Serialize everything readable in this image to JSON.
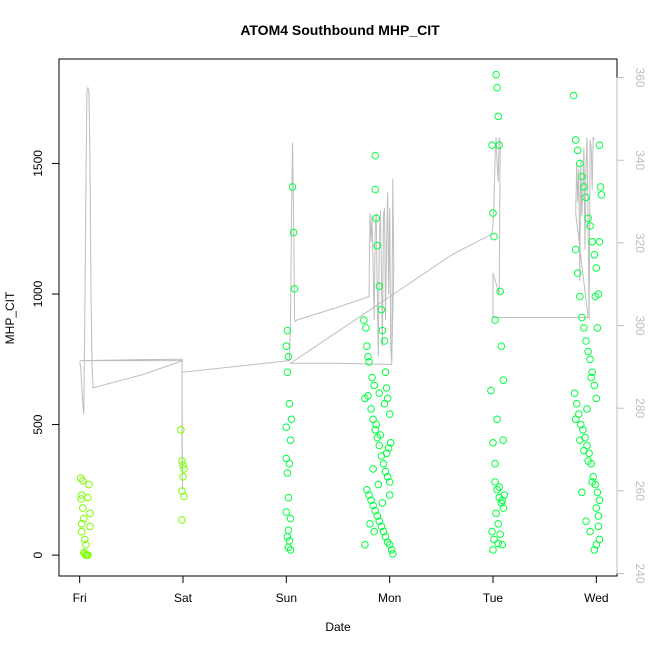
{
  "chart_data": {
    "type": "scatter",
    "title": "ATOM4 Southbound MHP_CIT",
    "xlabel": "Date",
    "ylabel": "MHP_CIT",
    "x_ticks": [
      {
        "label": "Fri",
        "day": 0
      },
      {
        "label": "Sat",
        "day": 1
      },
      {
        "label": "Sun",
        "day": 2
      },
      {
        "label": "Mon",
        "day": 3
      },
      {
        "label": "Tue",
        "day": 4
      },
      {
        "label": "Wed",
        "day": 5
      }
    ],
    "xlim": [
      -0.2,
      5.2
    ],
    "ylim": [
      -80,
      1900
    ],
    "y_ticks": [
      0,
      500,
      1000,
      1500
    ],
    "y2lim": [
      239.4,
      364.5
    ],
    "y2_ticks": [
      240,
      260,
      280,
      300,
      320,
      340,
      360
    ],
    "grid": false,
    "colors": {
      "points_early": "#7cff00",
      "points_late": "#00ff40",
      "line": "#bebebe"
    },
    "points": [
      [
        0.01,
        295
      ],
      [
        0.02,
        230
      ],
      [
        0.015,
        215
      ],
      [
        0.03,
        180
      ],
      [
        0.04,
        140
      ],
      [
        0.02,
        90
      ],
      [
        0.05,
        60
      ],
      [
        0.04,
        10
      ],
      [
        0.05,
        5
      ],
      [
        0.06,
        0
      ],
      [
        0.07,
        0
      ],
      [
        0.08,
        0
      ],
      [
        0.09,
        270
      ],
      [
        0.08,
        220
      ],
      [
        0.1,
        160
      ],
      [
        0.1,
        110
      ],
      [
        0.06,
        40
      ],
      [
        0.03,
        285
      ],
      [
        0.02,
        120
      ],
      [
        0.98,
        480
      ],
      [
        0.99,
        360
      ],
      [
        1.0,
        345
      ],
      [
        1.01,
        330
      ],
      [
        1.0,
        300
      ],
      [
        0.99,
        245
      ],
      [
        1.01,
        225
      ],
      [
        0.99,
        135
      ],
      [
        2.01,
        860
      ],
      [
        2.0,
        800
      ],
      [
        2.02,
        760
      ],
      [
        2.01,
        700
      ],
      [
        2.0,
        490
      ],
      [
        2.03,
        580
      ],
      [
        2.05,
        520
      ],
      [
        2.04,
        440
      ],
      [
        2.0,
        370
      ],
      [
        2.03,
        350
      ],
      [
        2.01,
        315
      ],
      [
        2.02,
        220
      ],
      [
        2.0,
        165
      ],
      [
        2.04,
        140
      ],
      [
        2.02,
        95
      ],
      [
        2.01,
        70
      ],
      [
        2.03,
        55
      ],
      [
        2.02,
        30
      ],
      [
        2.04,
        20
      ],
      [
        2.06,
        1410
      ],
      [
        2.07,
        1235
      ],
      [
        2.08,
        1020
      ],
      [
        2.75,
        900
      ],
      [
        2.77,
        870
      ],
      [
        2.78,
        800
      ],
      [
        2.79,
        760
      ],
      [
        2.8,
        740
      ],
      [
        2.76,
        600
      ],
      [
        2.82,
        560
      ],
      [
        2.84,
        520
      ],
      [
        2.86,
        480
      ],
      [
        2.88,
        450
      ],
      [
        2.9,
        420
      ],
      [
        2.92,
        380
      ],
      [
        2.94,
        350
      ],
      [
        2.96,
        320
      ],
      [
        2.98,
        300
      ],
      [
        3.0,
        280
      ],
      [
        2.78,
        250
      ],
      [
        2.8,
        230
      ],
      [
        2.82,
        210
      ],
      [
        2.84,
        190
      ],
      [
        2.86,
        170
      ],
      [
        2.88,
        150
      ],
      [
        2.9,
        130
      ],
      [
        2.92,
        110
      ],
      [
        2.94,
        90
      ],
      [
        2.96,
        70
      ],
      [
        2.98,
        50
      ],
      [
        3.0,
        40
      ],
      [
        3.02,
        20
      ],
      [
        3.03,
        5
      ],
      [
        2.86,
        1530
      ],
      [
        2.86,
        1400
      ],
      [
        2.87,
        1290
      ],
      [
        2.88,
        1185
      ],
      [
        2.9,
        1030
      ],
      [
        2.92,
        940
      ],
      [
        2.93,
        860
      ],
      [
        2.95,
        820
      ],
      [
        2.96,
        700
      ],
      [
        2.97,
        640
      ],
      [
        2.98,
        600
      ],
      [
        2.83,
        680
      ],
      [
        2.85,
        650
      ],
      [
        2.9,
        620
      ],
      [
        2.95,
        580
      ],
      [
        3.0,
        540
      ],
      [
        2.76,
        40
      ],
      [
        2.81,
        120
      ],
      [
        2.89,
        270
      ],
      [
        2.99,
        410
      ],
      [
        3.01,
        430
      ],
      [
        2.79,
        610
      ],
      [
        2.87,
        500
      ],
      [
        2.91,
        460
      ],
      [
        2.97,
        390
      ],
      [
        2.84,
        330
      ],
      [
        2.93,
        200
      ],
      [
        3.0,
        230
      ],
      [
        2.85,
        90
      ],
      [
        3.99,
        1570
      ],
      [
        4.0,
        1310
      ],
      [
        4.01,
        1220
      ],
      [
        4.02,
        900
      ],
      [
        4.03,
        1840
      ],
      [
        4.04,
        1790
      ],
      [
        4.05,
        1680
      ],
      [
        4.06,
        1570
      ],
      [
        4.07,
        1010
      ],
      [
        4.08,
        800
      ],
      [
        4.1,
        670
      ],
      [
        3.98,
        630
      ],
      [
        4.0,
        430
      ],
      [
        4.02,
        350
      ],
      [
        4.04,
        250
      ],
      [
        4.06,
        220
      ],
      [
        4.08,
        200
      ],
      [
        4.1,
        180
      ],
      [
        4.03,
        160
      ],
      [
        4.05,
        120
      ],
      [
        4.07,
        80
      ],
      [
        4.01,
        60
      ],
      [
        4.09,
        40
      ],
      [
        4.0,
        20
      ],
      [
        4.06,
        260
      ],
      [
        4.09,
        210
      ],
      [
        4.11,
        230
      ],
      [
        4.04,
        520
      ],
      [
        4.1,
        440
      ],
      [
        4.02,
        280
      ],
      [
        3.99,
        90
      ],
      [
        4.05,
        45
      ],
      [
        4.78,
        1760
      ],
      [
        4.8,
        1590
      ],
      [
        4.82,
        1550
      ],
      [
        4.84,
        1500
      ],
      [
        4.86,
        1450
      ],
      [
        4.88,
        1410
      ],
      [
        4.9,
        1370
      ],
      [
        4.92,
        1290
      ],
      [
        4.94,
        1260
      ],
      [
        4.96,
        1200
      ],
      [
        4.98,
        1150
      ],
      [
        5.0,
        1100
      ],
      [
        5.02,
        1000
      ],
      [
        4.8,
        1170
      ],
      [
        4.82,
        1080
      ],
      [
        4.84,
        990
      ],
      [
        4.86,
        910
      ],
      [
        4.88,
        870
      ],
      [
        4.9,
        820
      ],
      [
        4.92,
        780
      ],
      [
        4.94,
        750
      ],
      [
        4.96,
        700
      ],
      [
        4.98,
        650
      ],
      [
        5.0,
        600
      ],
      [
        4.79,
        620
      ],
      [
        4.81,
        580
      ],
      [
        4.83,
        540
      ],
      [
        4.85,
        500
      ],
      [
        4.87,
        480
      ],
      [
        4.89,
        450
      ],
      [
        4.91,
        420
      ],
      [
        4.93,
        390
      ],
      [
        4.95,
        350
      ],
      [
        4.97,
        300
      ],
      [
        4.99,
        270
      ],
      [
        5.01,
        240
      ],
      [
        5.03,
        210
      ],
      [
        4.8,
        520
      ],
      [
        4.84,
        440
      ],
      [
        4.88,
        400
      ],
      [
        4.92,
        360
      ],
      [
        4.96,
        280
      ],
      [
        5.0,
        180
      ],
      [
        5.02,
        110
      ],
      [
        5.03,
        60
      ],
      [
        5.0,
        40
      ],
      [
        4.86,
        240
      ],
      [
        4.9,
        130
      ],
      [
        4.94,
        90
      ],
      [
        4.98,
        20
      ],
      [
        5.02,
        150
      ],
      [
        5.03,
        1570
      ],
      [
        5.04,
        1410
      ],
      [
        5.05,
        1380
      ],
      [
        5.03,
        1200
      ],
      [
        4.99,
        990
      ],
      [
        5.01,
        870
      ],
      [
        4.95,
        680
      ],
      [
        4.91,
        560
      ]
    ],
    "line_series": [
      [
        0.0,
        740
      ],
      [
        0.01,
        720
      ],
      [
        0.02,
        650
      ],
      [
        0.03,
        580
      ],
      [
        0.04,
        540
      ],
      [
        0.05,
        900
      ],
      [
        0.06,
        1400
      ],
      [
        0.07,
        1780
      ],
      [
        0.08,
        1790
      ],
      [
        0.09,
        1770
      ],
      [
        0.1,
        1500
      ],
      [
        0.11,
        1000
      ],
      [
        0.12,
        720
      ],
      [
        0.13,
        640
      ],
      [
        0.12,
        640
      ],
      [
        0.6,
        690
      ],
      [
        1.0,
        745
      ],
      [
        0.99,
        745
      ],
      [
        0.0,
        745
      ],
      [
        0.01,
        745
      ],
      [
        0.5,
        748
      ],
      [
        0.98,
        750
      ],
      [
        0.99,
        750
      ],
      [
        0.99,
        420
      ],
      [
        0.995,
        250
      ],
      [
        0.99,
        700
      ],
      [
        2.03,
        745
      ],
      [
        2.04,
        900
      ],
      [
        2.05,
        1300
      ],
      [
        2.06,
        1580
      ],
      [
        2.07,
        1300
      ],
      [
        2.08,
        900
      ],
      [
        2.09,
        895
      ],
      [
        2.1,
        900
      ],
      [
        2.5,
        950
      ],
      [
        2.8,
        990
      ],
      [
        2.81,
        1310
      ],
      [
        2.82,
        1200
      ],
      [
        2.83,
        1300
      ],
      [
        2.84,
        1100
      ],
      [
        2.85,
        900
      ],
      [
        2.86,
        1250
      ],
      [
        2.87,
        1310
      ],
      [
        2.88,
        1000
      ],
      [
        2.89,
        760
      ],
      [
        2.9,
        1190
      ],
      [
        2.91,
        1320
      ],
      [
        2.92,
        1100
      ],
      [
        2.93,
        800
      ],
      [
        2.94,
        1300
      ],
      [
        2.95,
        1330
      ],
      [
        2.96,
        900
      ],
      [
        2.97,
        1200
      ],
      [
        2.98,
        1390
      ],
      [
        2.99,
        1000
      ],
      [
        3.0,
        1330
      ],
      [
        3.01,
        800
      ],
      [
        3.02,
        740
      ],
      [
        3.03,
        1440
      ],
      [
        3.04,
        1100
      ],
      [
        3.02,
        730
      ],
      [
        2.5,
        735
      ],
      [
        2.05,
        735
      ],
      [
        2.04,
        735
      ],
      [
        3.04,
        1000
      ],
      [
        3.6,
        1150
      ],
      [
        3.99,
        1230
      ],
      [
        4.0,
        1270
      ],
      [
        4.01,
        1350
      ],
      [
        4.02,
        1530
      ],
      [
        4.03,
        1600
      ],
      [
        4.04,
        1500
      ],
      [
        4.05,
        1430
      ],
      [
        4.06,
        1600
      ],
      [
        4.07,
        1580
      ],
      [
        4.06,
        1000
      ],
      [
        4.0,
        1080
      ],
      [
        4.0,
        910
      ],
      [
        4.5,
        910
      ],
      [
        4.92,
        910
      ],
      [
        4.8,
        1310
      ],
      [
        4.81,
        1500
      ],
      [
        4.82,
        1350
      ],
      [
        4.83,
        1480
      ],
      [
        4.84,
        1050
      ],
      [
        4.85,
        1510
      ],
      [
        4.86,
        1300
      ],
      [
        4.87,
        1400
      ],
      [
        4.88,
        1560
      ],
      [
        4.89,
        1170
      ],
      [
        4.9,
        1480
      ],
      [
        4.91,
        1600
      ],
      [
        4.92,
        1260
      ],
      [
        4.93,
        900
      ],
      [
        4.94,
        1590
      ],
      [
        4.95,
        1560
      ],
      [
        4.96,
        1400
      ],
      [
        4.97,
        1600
      ],
      [
        4.98,
        1590
      ]
    ]
  }
}
